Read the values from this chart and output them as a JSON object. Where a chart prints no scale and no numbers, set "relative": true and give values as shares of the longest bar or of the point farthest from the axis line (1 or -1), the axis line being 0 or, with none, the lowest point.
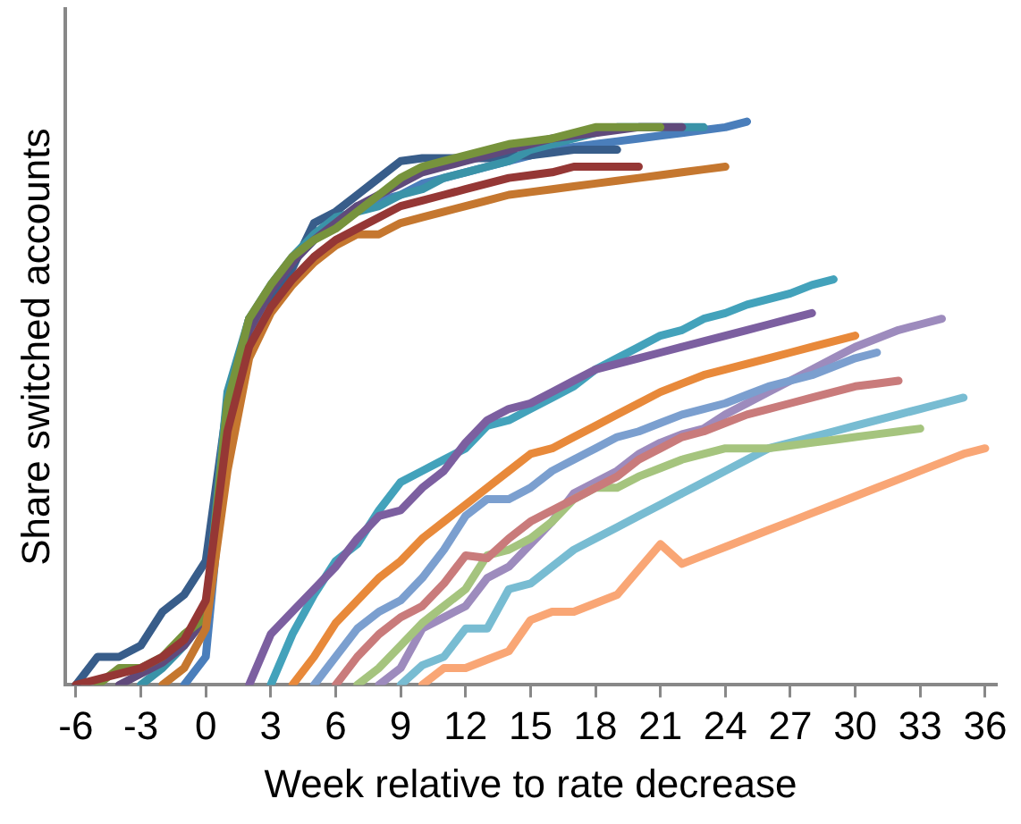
{
  "chart_data": {
    "type": "line",
    "xlabel": "Week relative to rate decrease",
    "ylabel": "Share switched accounts",
    "relative": true,
    "legend": false,
    "grid": false,
    "marker": "none",
    "line_style": "solid",
    "xlim": [
      -6.5,
      36.5
    ],
    "xticks": [
      -6,
      -3,
      0,
      3,
      6,
      9,
      12,
      15,
      18,
      21,
      24,
      27,
      30,
      33,
      36
    ],
    "series": [
      {
        "color": "#953735",
        "x": [
          -6,
          -5,
          -4,
          -3,
          -2,
          -1,
          0,
          1,
          2,
          3,
          4,
          5,
          6,
          7,
          8,
          9,
          10,
          11,
          12,
          13,
          14,
          15,
          16,
          17,
          18,
          19,
          20
        ],
        "values": [
          0,
          0.01,
          0.02,
          0.03,
          0.05,
          0.08,
          0.15,
          0.45,
          0.6,
          0.67,
          0.72,
          0.76,
          0.79,
          0.81,
          0.83,
          0.85,
          0.86,
          0.87,
          0.88,
          0.89,
          0.9,
          0.905,
          0.91,
          0.92,
          0.92,
          0.92,
          0.92
        ]
      },
      {
        "color": "#c5772f",
        "x": [
          -2,
          -1,
          0,
          1,
          2,
          3,
          4,
          5,
          6,
          7,
          8,
          9,
          10,
          11,
          12,
          13,
          14,
          15,
          16,
          17,
          18,
          19,
          20,
          21,
          22,
          23,
          24
        ],
        "values": [
          0,
          0.03,
          0.1,
          0.38,
          0.58,
          0.66,
          0.71,
          0.75,
          0.78,
          0.8,
          0.8,
          0.82,
          0.83,
          0.84,
          0.85,
          0.86,
          0.87,
          0.875,
          0.88,
          0.885,
          0.89,
          0.895,
          0.9,
          0.905,
          0.91,
          0.915,
          0.92
        ]
      },
      {
        "color": "#77933c",
        "x": [
          -5,
          -4,
          -3,
          -2,
          -1,
          0,
          1,
          2,
          3,
          4,
          5,
          6,
          7,
          8,
          9,
          10,
          11,
          12,
          13,
          14,
          15,
          16,
          17,
          18,
          19,
          20,
          21
        ],
        "values": [
          0,
          0.03,
          0.03,
          0.05,
          0.09,
          0.12,
          0.5,
          0.65,
          0.71,
          0.76,
          0.79,
          0.81,
          0.84,
          0.87,
          0.9,
          0.92,
          0.93,
          0.94,
          0.95,
          0.96,
          0.965,
          0.97,
          0.98,
          0.99,
          0.99,
          0.99,
          0.99
        ]
      },
      {
        "color": "#604a7b",
        "x": [
          -4,
          -3,
          -2,
          -1,
          0,
          1,
          2,
          3,
          4,
          5,
          6,
          7,
          8,
          9,
          10,
          11,
          12,
          13,
          14,
          15,
          16,
          17,
          18,
          19,
          20,
          21,
          22
        ],
        "values": [
          0,
          0.02,
          0.04,
          0.07,
          0.12,
          0.48,
          0.63,
          0.7,
          0.75,
          0.79,
          0.82,
          0.85,
          0.87,
          0.89,
          0.91,
          0.92,
          0.93,
          0.94,
          0.95,
          0.96,
          0.97,
          0.975,
          0.98,
          0.985,
          0.99,
          0.99,
          0.99
        ]
      },
      {
        "color": "#3a93a8",
        "x": [
          -3,
          -2,
          -1,
          0,
          1,
          2,
          3,
          4,
          5,
          6,
          7,
          8,
          9,
          10,
          11,
          12,
          13,
          14,
          15,
          16,
          17,
          18,
          19,
          20,
          21,
          22,
          23
        ],
        "values": [
          0,
          0.03,
          0.07,
          0.12,
          0.52,
          0.65,
          0.71,
          0.76,
          0.8,
          0.83,
          0.84,
          0.85,
          0.87,
          0.88,
          0.9,
          0.91,
          0.92,
          0.93,
          0.95,
          0.96,
          0.97,
          0.98,
          0.99,
          0.99,
          0.99,
          0.99,
          0.99
        ]
      },
      {
        "color": "#385d8a",
        "x": [
          -6,
          -5,
          -4,
          -3,
          -2,
          -1,
          0,
          1,
          2,
          3,
          4,
          5,
          6,
          7,
          8,
          9,
          10,
          11,
          12,
          13,
          14,
          15,
          16,
          17,
          18,
          19
        ],
        "values": [
          0,
          0.05,
          0.05,
          0.07,
          0.13,
          0.16,
          0.22,
          0.5,
          0.65,
          0.69,
          0.74,
          0.82,
          0.84,
          0.87,
          0.9,
          0.93,
          0.935,
          0.935,
          0.935,
          0.935,
          0.94,
          0.94,
          0.945,
          0.95,
          0.95,
          0.95
        ]
      },
      {
        "color": "#4a7ebb",
        "x": [
          -1,
          0,
          1,
          2,
          3,
          4,
          5,
          6,
          7,
          8,
          9,
          10,
          11,
          12,
          13,
          14,
          15,
          16,
          17,
          18,
          19,
          20,
          21,
          22,
          23,
          24,
          25
        ],
        "values": [
          0,
          0.05,
          0.45,
          0.62,
          0.69,
          0.75,
          0.79,
          0.82,
          0.85,
          0.86,
          0.87,
          0.89,
          0.9,
          0.91,
          0.92,
          0.93,
          0.94,
          0.95,
          0.955,
          0.96,
          0.965,
          0.97,
          0.975,
          0.98,
          0.985,
          0.99,
          1
        ]
      },
      {
        "color": "#7c5fa0",
        "x": [
          2,
          3,
          4,
          5,
          6,
          7,
          8,
          9,
          10,
          11,
          12,
          13,
          14,
          15,
          16,
          17,
          18,
          19,
          20,
          21,
          22,
          23,
          24,
          25,
          26,
          27,
          28
        ],
        "values": [
          0,
          0.09,
          0.13,
          0.17,
          0.21,
          0.26,
          0.3,
          0.31,
          0.35,
          0.38,
          0.43,
          0.47,
          0.49,
          0.5,
          0.52,
          0.54,
          0.56,
          0.57,
          0.58,
          0.59,
          0.6,
          0.61,
          0.62,
          0.63,
          0.64,
          0.65,
          0.66
        ]
      },
      {
        "color": "#43a2bb",
        "x": [
          3,
          4,
          5,
          6,
          7,
          8,
          9,
          10,
          11,
          12,
          13,
          14,
          15,
          16,
          17,
          18,
          19,
          20,
          21,
          22,
          23,
          24,
          25,
          26,
          27,
          28,
          29
        ],
        "values": [
          0,
          0.09,
          0.16,
          0.22,
          0.25,
          0.31,
          0.36,
          0.38,
          0.4,
          0.42,
          0.46,
          0.47,
          0.49,
          0.51,
          0.53,
          0.56,
          0.58,
          0.6,
          0.62,
          0.63,
          0.65,
          0.66,
          0.675,
          0.685,
          0.695,
          0.71,
          0.72
        ]
      },
      {
        "color": "#e8893a",
        "x": [
          4,
          5,
          6,
          7,
          8,
          9,
          10,
          11,
          12,
          13,
          14,
          15,
          16,
          17,
          18,
          19,
          20,
          21,
          22,
          23,
          24,
          25,
          26,
          27,
          28,
          29,
          30
        ],
        "values": [
          0,
          0.05,
          0.11,
          0.15,
          0.19,
          0.22,
          0.26,
          0.29,
          0.32,
          0.35,
          0.38,
          0.41,
          0.42,
          0.44,
          0.46,
          0.48,
          0.5,
          0.52,
          0.535,
          0.55,
          0.56,
          0.57,
          0.58,
          0.59,
          0.6,
          0.61,
          0.62
        ]
      },
      {
        "color": "#7b9fcf",
        "x": [
          5,
          6,
          7,
          8,
          9,
          10,
          11,
          12,
          13,
          14,
          15,
          16,
          17,
          18,
          19,
          20,
          21,
          22,
          23,
          24,
          25,
          26,
          27,
          28,
          29,
          30,
          31
        ],
        "values": [
          0,
          0.05,
          0.1,
          0.13,
          0.15,
          0.19,
          0.24,
          0.3,
          0.33,
          0.33,
          0.35,
          0.38,
          0.4,
          0.42,
          0.44,
          0.45,
          0.465,
          0.48,
          0.49,
          0.5,
          0.515,
          0.53,
          0.54,
          0.55,
          0.565,
          0.58,
          0.59
        ]
      },
      {
        "color": "#c97b7b",
        "x": [
          6,
          7,
          8,
          9,
          10,
          11,
          12,
          13,
          14,
          15,
          16,
          17,
          18,
          19,
          20,
          21,
          22,
          23,
          24,
          25,
          26,
          27,
          28,
          29,
          30,
          31,
          32
        ],
        "values": [
          0,
          0.05,
          0.09,
          0.12,
          0.14,
          0.18,
          0.23,
          0.225,
          0.26,
          0.29,
          0.31,
          0.33,
          0.35,
          0.37,
          0.4,
          0.42,
          0.44,
          0.45,
          0.465,
          0.48,
          0.49,
          0.5,
          0.51,
          0.52,
          0.53,
          0.535,
          0.54
        ]
      },
      {
        "color": "#a5c47e",
        "x": [
          7,
          8,
          9,
          10,
          11,
          12,
          13,
          14,
          15,
          16,
          17,
          18,
          19,
          20,
          21,
          22,
          23,
          24,
          25,
          26,
          27,
          28,
          29,
          30,
          31,
          32,
          33
        ],
        "values": [
          0,
          0.03,
          0.07,
          0.11,
          0.14,
          0.17,
          0.23,
          0.24,
          0.26,
          0.29,
          0.33,
          0.35,
          0.35,
          0.37,
          0.385,
          0.4,
          0.41,
          0.42,
          0.42,
          0.42,
          0.425,
          0.43,
          0.435,
          0.44,
          0.445,
          0.45,
          0.455
        ]
      },
      {
        "color": "#9d8bbd",
        "x": [
          8,
          9,
          10,
          11,
          12,
          13,
          14,
          15,
          16,
          17,
          18,
          19,
          20,
          21,
          22,
          23,
          24,
          25,
          26,
          27,
          28,
          29,
          30,
          31,
          32,
          33,
          34
        ],
        "values": [
          0,
          0.03,
          0.1,
          0.12,
          0.14,
          0.19,
          0.21,
          0.25,
          0.29,
          0.34,
          0.36,
          0.38,
          0.41,
          0.43,
          0.445,
          0.455,
          0.48,
          0.5,
          0.52,
          0.54,
          0.56,
          0.58,
          0.6,
          0.615,
          0.63,
          0.64,
          0.65
        ]
      },
      {
        "color": "#78bcd2",
        "x": [
          9,
          10,
          11,
          12,
          13,
          14,
          15,
          16,
          17,
          18,
          19,
          20,
          21,
          22,
          23,
          24,
          25,
          26,
          27,
          28,
          29,
          30,
          31,
          32,
          33,
          34,
          35
        ],
        "values": [
          0,
          0.035,
          0.05,
          0.1,
          0.1,
          0.17,
          0.18,
          0.21,
          0.24,
          0.26,
          0.28,
          0.3,
          0.32,
          0.34,
          0.36,
          0.38,
          0.4,
          0.42,
          0.43,
          0.44,
          0.45,
          0.46,
          0.47,
          0.48,
          0.49,
          0.5,
          0.51
        ]
      },
      {
        "color": "#f9a675",
        "x": [
          10,
          11,
          12,
          13,
          14,
          15,
          16,
          17,
          18,
          19,
          20,
          21,
          22,
          23,
          24,
          25,
          26,
          27,
          28,
          29,
          30,
          31,
          32,
          33,
          34,
          35,
          36
        ],
        "values": [
          0,
          0.03,
          0.03,
          0.045,
          0.06,
          0.115,
          0.13,
          0.13,
          0.145,
          0.16,
          0.205,
          0.25,
          0.215,
          0.23,
          0.245,
          0.26,
          0.275,
          0.29,
          0.305,
          0.32,
          0.335,
          0.35,
          0.365,
          0.38,
          0.395,
          0.41,
          0.42
        ]
      }
    ]
  }
}
